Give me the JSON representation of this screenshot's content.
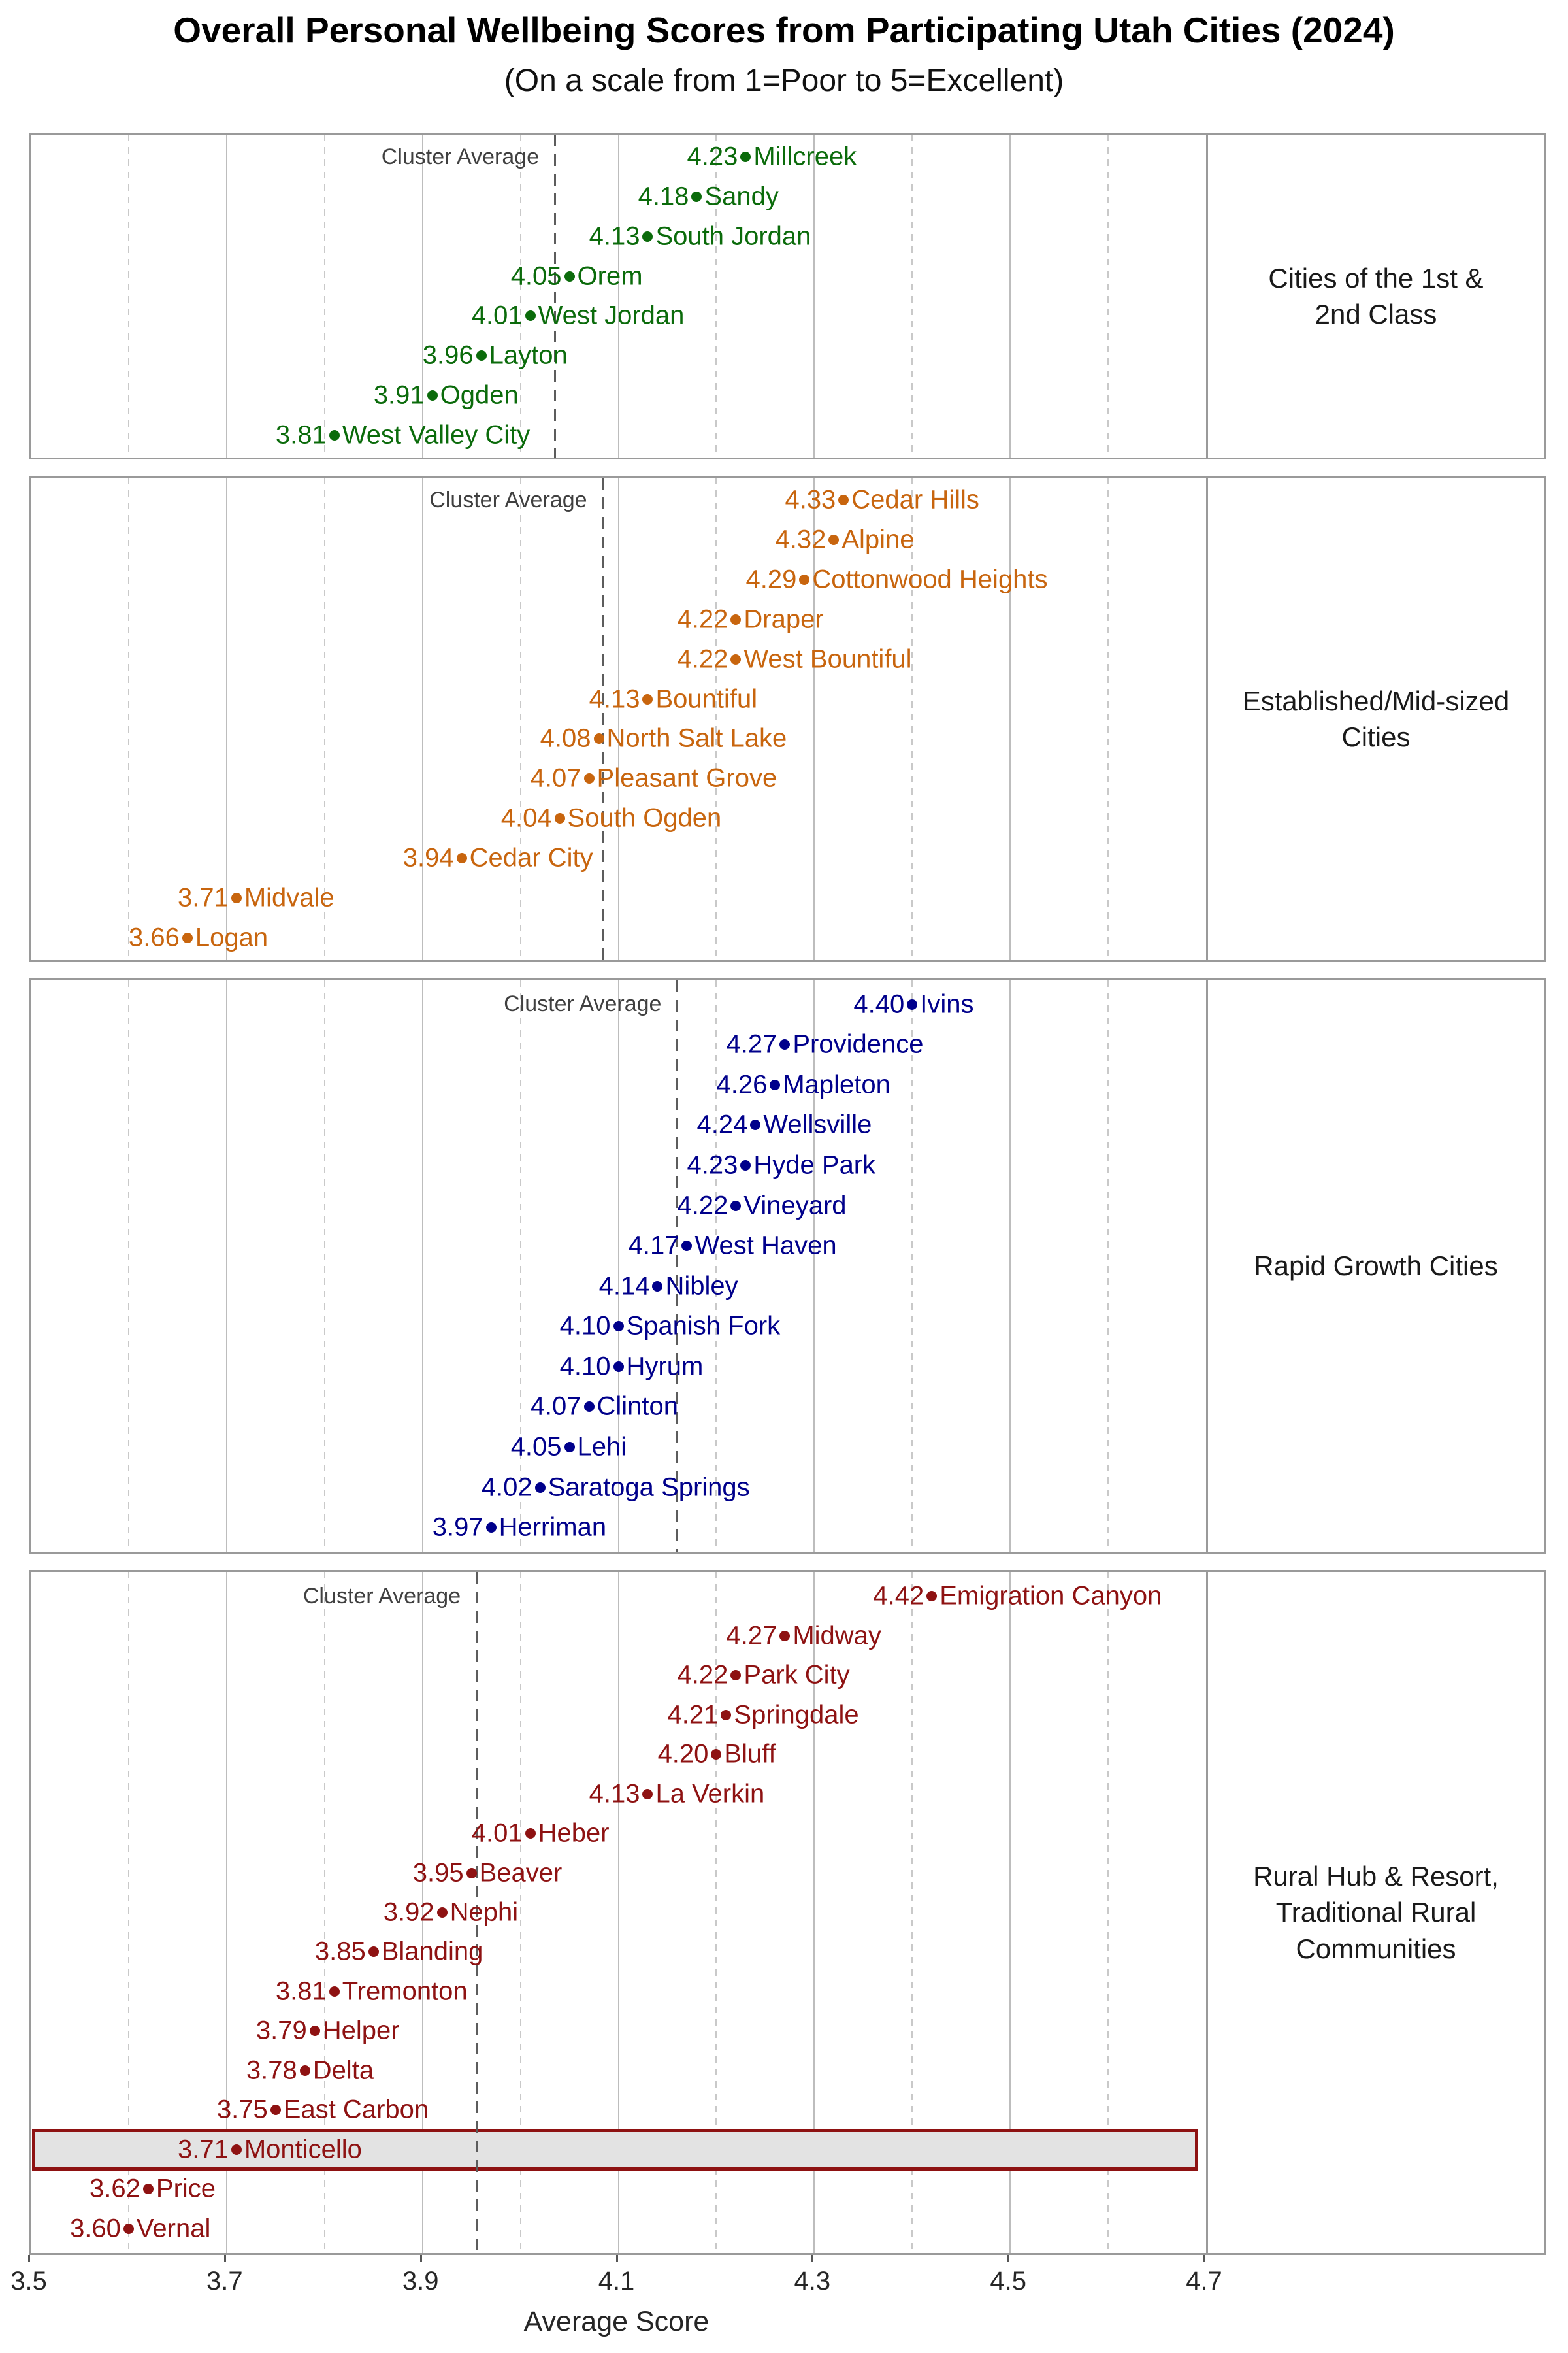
{
  "title": "Overall Personal Wellbeing Scores from Participating Utah Cities (2024)",
  "subtitle": "(On a scale from 1=Poor to 5=Excellent)",
  "chart_data": {
    "type": "scatter",
    "xlabel": "Average Score",
    "xlim": [
      3.5,
      4.7
    ],
    "x_ticks": [
      3.5,
      3.7,
      3.9,
      4.1,
      4.3,
      4.5,
      4.7
    ],
    "x_tick_labels": [
      "3.5",
      "3.7",
      "3.9",
      "4.1",
      "4.3",
      "4.5",
      "4.7"
    ],
    "x_minor_gridlines": [
      3.6,
      3.8,
      4.0,
      4.2,
      4.4,
      4.6
    ],
    "grid": "on",
    "cluster_average_label": "Cluster Average",
    "panels": [
      {
        "label_lines": [
          "Cities of the 1st &",
          "2nd Class"
        ],
        "color": "#0B6B0B",
        "cluster_average": 4.035,
        "points": [
          {
            "city": "Millcreek",
            "value": 4.23
          },
          {
            "city": "Sandy",
            "value": 4.18
          },
          {
            "city": "South Jordan",
            "value": 4.13
          },
          {
            "city": "Orem",
            "value": 4.05
          },
          {
            "city": "West Jordan",
            "value": 4.01
          },
          {
            "city": "Layton",
            "value": 3.96
          },
          {
            "city": "Ogden",
            "value": 3.91
          },
          {
            "city": "West Valley City",
            "value": 3.81
          }
        ]
      },
      {
        "label_lines": [
          "Established/Mid-sized",
          "Cities"
        ],
        "color": "#C8650E",
        "cluster_average": 4.084,
        "points": [
          {
            "city": "Cedar Hills",
            "value": 4.33
          },
          {
            "city": "Alpine",
            "value": 4.32
          },
          {
            "city": "Cottonwood Heights",
            "value": 4.29
          },
          {
            "city": "Draper",
            "value": 4.22
          },
          {
            "city": "West Bountiful",
            "value": 4.22
          },
          {
            "city": "Bountiful",
            "value": 4.13
          },
          {
            "city": "North Salt Lake",
            "value": 4.08
          },
          {
            "city": "Pleasant Grove",
            "value": 4.07
          },
          {
            "city": "South Ogden",
            "value": 4.04
          },
          {
            "city": "Cedar City",
            "value": 3.94
          },
          {
            "city": "Midvale",
            "value": 3.71
          },
          {
            "city": "Logan",
            "value": 3.66
          }
        ]
      },
      {
        "label_lines": [
          "Rapid Growth Cities"
        ],
        "color": "#00008B",
        "cluster_average": 4.16,
        "points": [
          {
            "city": "Ivins",
            "value": 4.4
          },
          {
            "city": "Providence",
            "value": 4.27
          },
          {
            "city": "Mapleton",
            "value": 4.26
          },
          {
            "city": "Wellsville",
            "value": 4.24
          },
          {
            "city": "Hyde Park",
            "value": 4.23
          },
          {
            "city": "Vineyard",
            "value": 4.22
          },
          {
            "city": "West Haven",
            "value": 4.17
          },
          {
            "city": "Nibley",
            "value": 4.14
          },
          {
            "city": "Spanish Fork",
            "value": 4.1
          },
          {
            "city": "Hyrum",
            "value": 4.1
          },
          {
            "city": "Clinton",
            "value": 4.07
          },
          {
            "city": "Lehi",
            "value": 4.05
          },
          {
            "city": "Saratoga Springs",
            "value": 4.02
          },
          {
            "city": "Herriman",
            "value": 3.97
          }
        ]
      },
      {
        "label_lines": [
          "Rural Hub & Resort,",
          "Traditional Rural",
          "Communities"
        ],
        "color": "#8E1212",
        "cluster_average": 3.955,
        "points": [
          {
            "city": "Emigration Canyon",
            "value": 4.42
          },
          {
            "city": "Midway",
            "value": 4.27
          },
          {
            "city": "Park City",
            "value": 4.22
          },
          {
            "city": "Springdale",
            "value": 4.21
          },
          {
            "city": "Bluff",
            "value": 4.2
          },
          {
            "city": "La Verkin",
            "value": 4.13
          },
          {
            "city": "Heber",
            "value": 4.01
          },
          {
            "city": "Beaver",
            "value": 3.95
          },
          {
            "city": "Nephi",
            "value": 3.92
          },
          {
            "city": "Blanding",
            "value": 3.85
          },
          {
            "city": "Tremonton",
            "value": 3.81
          },
          {
            "city": "Helper",
            "value": 3.79
          },
          {
            "city": "Delta",
            "value": 3.78
          },
          {
            "city": "East Carbon",
            "value": 3.75
          },
          {
            "city": "Monticello",
            "value": 3.71
          },
          {
            "city": "Price",
            "value": 3.62
          },
          {
            "city": "Vernal",
            "value": 3.6
          }
        ]
      }
    ],
    "highlight": {
      "city": "Monticello",
      "fill": "#e3e3e3",
      "border": "#8E1212"
    },
    "style_colors": {
      "panel_border": "#9a9a9a",
      "major_gridline": "#bdbdbd",
      "minor_gridline": "#c9c9c9",
      "cluster_line": "#5c5c5c",
      "cluster_label_text": "#404040",
      "axis_text": "#262626"
    }
  }
}
